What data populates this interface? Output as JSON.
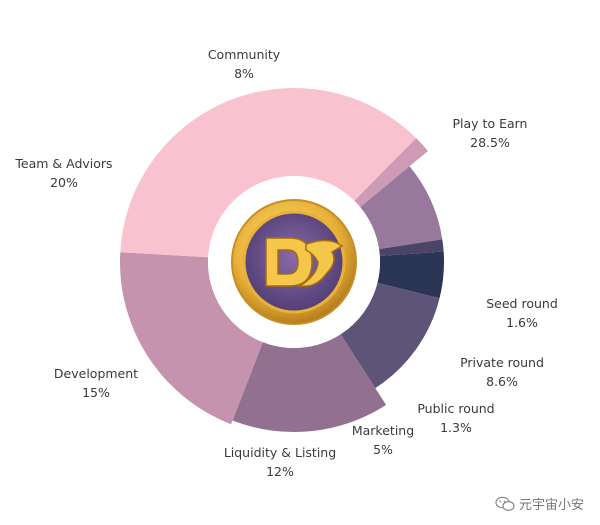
{
  "chart_data": {
    "type": "pie",
    "title": "",
    "center_logo_text": "DS",
    "categories": [
      "Play to Earn",
      "Seed round",
      "Private round",
      "Public round",
      "Marketing",
      "Liquidity & Listing",
      "Development",
      "Team & Adviors",
      "Community"
    ],
    "values": [
      28.5,
      1.6,
      8.6,
      1.3,
      5,
      12,
      15,
      20,
      8
    ],
    "value_labels": [
      "28.5%",
      "1.6%",
      "8.6%",
      "1.3%",
      "5%",
      "12%",
      "15%",
      "20%",
      "8%"
    ],
    "colors": [
      "#f9c2cf",
      "#cd9bb5",
      "#98789c",
      "#4a4568",
      "#2b3556",
      "#5d5478",
      "#92708f",
      "#c593ad",
      "#f9c2cf"
    ],
    "legend": "none"
  },
  "watermark": {
    "text": "元宇宙小安"
  }
}
